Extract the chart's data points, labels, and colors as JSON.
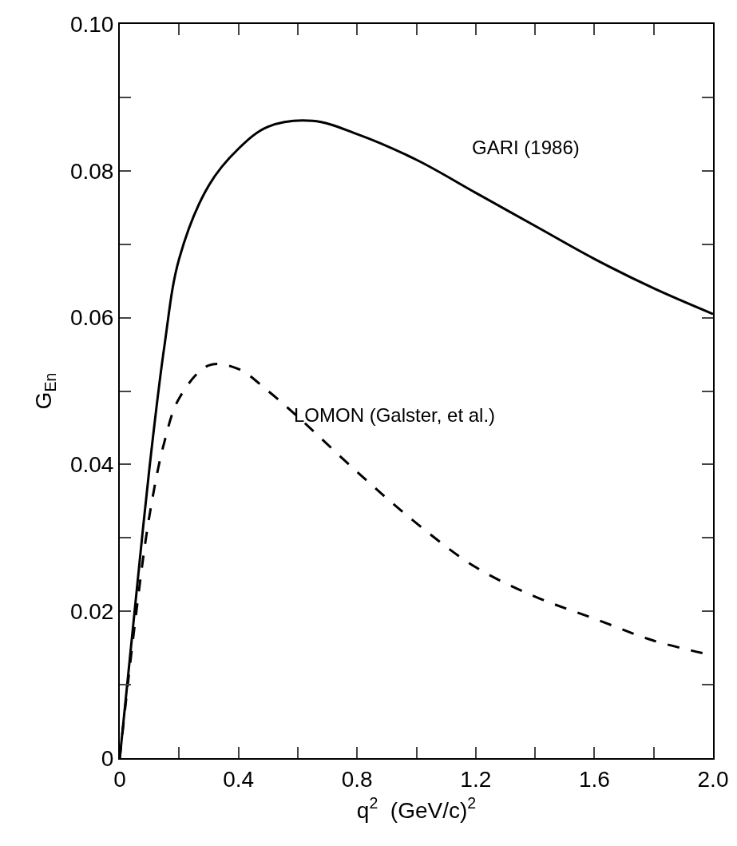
{
  "chart_data": {
    "type": "line",
    "xlabel": "q$^{2}$  (GeV/c)$^{2}$",
    "ylabel": "G$_{En}$",
    "xlim": [
      0,
      2.0
    ],
    "ylim": [
      0,
      0.1
    ],
    "xticks": [
      {
        "value": 0,
        "label": "0"
      },
      {
        "value": 0.2,
        "label": null
      },
      {
        "value": 0.4,
        "label": "0.4"
      },
      {
        "value": 0.6,
        "label": null
      },
      {
        "value": 0.8,
        "label": "0.8"
      },
      {
        "value": 1.0,
        "label": null
      },
      {
        "value": 1.2,
        "label": "1.2"
      },
      {
        "value": 1.4,
        "label": null
      },
      {
        "value": 1.6,
        "label": "1.6"
      },
      {
        "value": 1.8,
        "label": null
      },
      {
        "value": 2.0,
        "label": "2.0"
      }
    ],
    "yticks": [
      {
        "value": 0,
        "label": "0"
      },
      {
        "value": 0.01,
        "label": null
      },
      {
        "value": 0.02,
        "label": "0.02"
      },
      {
        "value": 0.03,
        "label": null
      },
      {
        "value": 0.04,
        "label": "0.04"
      },
      {
        "value": 0.05,
        "label": null
      },
      {
        "value": 0.06,
        "label": "0.06"
      },
      {
        "value": 0.07,
        "label": null
      },
      {
        "value": 0.08,
        "label": "0.08"
      },
      {
        "value": 0.09,
        "label": null
      },
      {
        "value": 0.1,
        "label": "0.10"
      }
    ],
    "legend": false,
    "marker": "none",
    "series": [
      {
        "name": "GARI (1986)",
        "color": "#000000",
        "line_style": "solid",
        "x": [
          0,
          0.02,
          0.05,
          0.1,
          0.15,
          0.2,
          0.3,
          0.4,
          0.5,
          0.65,
          0.8,
          1.0,
          1.2,
          1.4,
          1.6,
          1.8,
          2.0
        ],
        "values": [
          0,
          0.008,
          0.02,
          0.0395,
          0.056,
          0.068,
          0.078,
          0.083,
          0.086,
          0.0868,
          0.085,
          0.0815,
          0.077,
          0.0725,
          0.068,
          0.064,
          0.0605
        ]
      },
      {
        "name": "LOMON (Galster, et al.)",
        "color": "#000000",
        "line_style": "dashed",
        "x": [
          0,
          0.05,
          0.1,
          0.15,
          0.2,
          0.3,
          0.4,
          0.5,
          0.6,
          0.8,
          1.0,
          1.2,
          1.4,
          1.6,
          1.8,
          2.0
        ],
        "values": [
          0,
          0.018,
          0.033,
          0.043,
          0.049,
          0.0535,
          0.053,
          0.05,
          0.0465,
          0.039,
          0.032,
          0.026,
          0.022,
          0.019,
          0.016,
          0.014
        ]
      }
    ]
  }
}
